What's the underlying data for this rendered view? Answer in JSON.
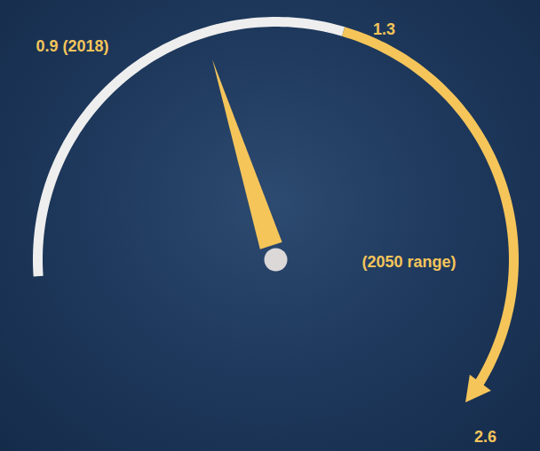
{
  "chart_data": {
    "type": "gauge",
    "gauge_range": [
      0,
      2.6
    ],
    "needle": {
      "value": 0.9,
      "label": "0.9 (2018)",
      "color": "#f5c55a"
    },
    "bands": [
      {
        "from": 0,
        "to": 1.3,
        "color": "#eeeeee"
      },
      {
        "from": 1.3,
        "to": 2.6,
        "color": "#f5c55a",
        "label": "(2050 range)",
        "marker": "arrow"
      }
    ],
    "ticks": [
      1.3,
      2.6
    ]
  }
}
